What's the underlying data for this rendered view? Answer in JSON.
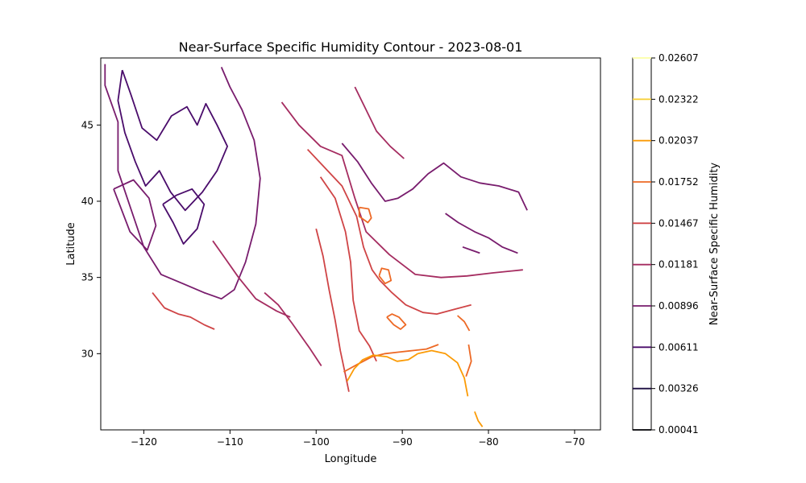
{
  "chart_data": {
    "type": "contour",
    "title": "Near-Surface Specific Humidity Contour - 2023-08-01",
    "xlabel": "Longitude",
    "ylabel": "Latitude",
    "xlim": [
      -125,
      -67
    ],
    "ylim": [
      25,
      49.4
    ],
    "x_ticks": [
      -120,
      -110,
      -100,
      -90,
      -80,
      -70
    ],
    "y_ticks": [
      30,
      35,
      40,
      45
    ],
    "x_tick_labels": [
      "−120",
      "−110",
      "−100",
      "−90",
      "−80",
      "−70"
    ],
    "y_tick_labels": [
      "30",
      "35",
      "40",
      "45"
    ],
    "grid": false,
    "colorbar": {
      "label": "Near-Surface Specific Humidity",
      "position": "right",
      "levels": [
        0.00041,
        0.00326,
        0.00611,
        0.00896,
        0.01181,
        0.01467,
        0.01752,
        0.02037,
        0.02322,
        0.02607
      ],
      "level_labels": [
        "0.00041",
        "0.00326",
        "0.00611",
        "0.00896",
        "0.01181",
        "0.01467",
        "0.01752",
        "0.02037",
        "0.02322",
        "0.02607"
      ],
      "colors": [
        "#000004",
        "#1b0c41",
        "#4a0c6b",
        "#781c6d",
        "#a52c60",
        "#cf4446",
        "#ed6925",
        "#fb9b06",
        "#f7d13d",
        "#fcffa4"
      ]
    },
    "series": [
      {
        "level": 0.00611,
        "lines": [
          [
            [
              -122.5,
              48.6
            ],
            [
              -121.5,
              47.0
            ],
            [
              -120.2,
              44.8
            ],
            [
              -118.5,
              44.0
            ],
            [
              -116.8,
              45.6
            ],
            [
              -115.0,
              46.2
            ],
            [
              -113.8,
              45.0
            ],
            [
              -112.8,
              46.4
            ],
            [
              -111.5,
              45.0
            ],
            [
              -110.3,
              43.6
            ],
            [
              -111.5,
              42.0
            ],
            [
              -113.2,
              40.6
            ],
            [
              -115.2,
              39.4
            ],
            [
              -116.9,
              40.6
            ],
            [
              -118.2,
              42.0
            ],
            [
              -119.8,
              41.0
            ],
            [
              -121.0,
              42.6
            ],
            [
              -122.2,
              44.5
            ],
            [
              -123.0,
              46.6
            ],
            [
              -122.5,
              48.6
            ]
          ],
          [
            [
              -117.8,
              39.8
            ],
            [
              -116.6,
              38.6
            ],
            [
              -115.4,
              37.2
            ],
            [
              -113.8,
              38.2
            ],
            [
              -113.0,
              39.8
            ],
            [
              -114.4,
              40.8
            ],
            [
              -116.2,
              40.4
            ],
            [
              -117.8,
              39.8
            ]
          ]
        ]
      },
      {
        "level": 0.00896,
        "lines": [
          [
            [
              -124.5,
              49.0
            ],
            [
              -124.5,
              47.6
            ],
            [
              -123.0,
              45.2
            ],
            [
              -123.0,
              42.0
            ],
            [
              -121.5,
              39.5
            ],
            [
              -120.0,
              37.0
            ],
            [
              -118.0,
              35.2
            ],
            [
              -115.5,
              34.6
            ],
            [
              -113.0,
              34.0
            ],
            [
              -111.0,
              33.6
            ],
            [
              -109.5,
              34.2
            ],
            [
              -108.2,
              36.0
            ],
            [
              -107.0,
              38.5
            ],
            [
              -106.5,
              41.5
            ],
            [
              -107.2,
              44.0
            ],
            [
              -108.6,
              46.0
            ],
            [
              -110.0,
              47.5
            ],
            [
              -111.0,
              48.8
            ]
          ],
          [
            [
              -123.5,
              40.8
            ],
            [
              -121.6,
              38.0
            ],
            [
              -119.6,
              36.8
            ],
            [
              -118.6,
              38.4
            ],
            [
              -119.4,
              40.2
            ],
            [
              -121.2,
              41.4
            ],
            [
              -123.5,
              40.8
            ]
          ],
          [
            [
              -97.0,
              43.8
            ],
            [
              -95.2,
              42.6
            ],
            [
              -93.6,
              41.2
            ],
            [
              -92.0,
              40.0
            ],
            [
              -90.5,
              40.2
            ],
            [
              -88.8,
              40.8
            ],
            [
              -87.0,
              41.8
            ],
            [
              -85.2,
              42.5
            ],
            [
              -83.2,
              41.6
            ],
            [
              -81.0,
              41.2
            ],
            [
              -78.8,
              41.0
            ],
            [
              -76.5,
              40.6
            ],
            [
              -75.5,
              39.4
            ]
          ],
          [
            [
              -85.0,
              39.2
            ],
            [
              -83.5,
              38.6
            ],
            [
              -81.6,
              38.0
            ],
            [
              -80.0,
              37.6
            ],
            [
              -78.4,
              37.0
            ],
            [
              -76.6,
              36.6
            ]
          ],
          [
            [
              -83.0,
              37.0
            ],
            [
              -82.0,
              36.8
            ],
            [
              -81.0,
              36.6
            ]
          ]
        ]
      },
      {
        "level": 0.01181,
        "lines": [
          [
            [
              -112.0,
              37.4
            ],
            [
              -110.5,
              36.2
            ],
            [
              -109.0,
              35.0
            ],
            [
              -107.0,
              33.6
            ],
            [
              -104.6,
              32.8
            ],
            [
              -103.0,
              32.4
            ]
          ],
          [
            [
              -104.0,
              46.5
            ],
            [
              -102.0,
              45.0
            ],
            [
              -99.5,
              43.6
            ],
            [
              -97.0,
              43.0
            ],
            [
              -95.5,
              40.2
            ],
            [
              -94.2,
              38.0
            ],
            [
              -91.5,
              36.5
            ],
            [
              -88.5,
              35.2
            ],
            [
              -85.5,
              35.0
            ],
            [
              -82.5,
              35.1
            ],
            [
              -79.5,
              35.3
            ],
            [
              -76.0,
              35.5
            ]
          ],
          [
            [
              -95.5,
              47.5
            ],
            [
              -94.2,
              46.0
            ],
            [
              -93.0,
              44.6
            ],
            [
              -91.4,
              43.6
            ],
            [
              -89.8,
              42.8
            ]
          ],
          [
            [
              -106.0,
              34.0
            ],
            [
              -104.4,
              33.2
            ],
            [
              -102.8,
              32.0
            ],
            [
              -100.8,
              30.4
            ],
            [
              -99.4,
              29.2
            ]
          ]
        ]
      },
      {
        "level": 0.01467,
        "lines": [
          [
            [
              -119.0,
              34.0
            ],
            [
              -117.6,
              33.0
            ],
            [
              -116.0,
              32.6
            ],
            [
              -114.6,
              32.4
            ],
            [
              -113.0,
              31.9
            ],
            [
              -111.8,
              31.6
            ]
          ],
          [
            [
              -101.0,
              43.4
            ],
            [
              -99.0,
              42.2
            ],
            [
              -97.0,
              41.0
            ],
            [
              -95.3,
              39.0
            ],
            [
              -94.5,
              37.0
            ],
            [
              -93.5,
              35.5
            ],
            [
              -92.6,
              34.8
            ],
            [
              -91.2,
              34.0
            ],
            [
              -89.6,
              33.2
            ],
            [
              -87.6,
              32.7
            ],
            [
              -86.0,
              32.6
            ],
            [
              -84.0,
              32.9
            ],
            [
              -82.0,
              33.2
            ]
          ],
          [
            [
              -99.5,
              41.6
            ],
            [
              -97.8,
              40.2
            ],
            [
              -96.6,
              38.0
            ],
            [
              -96.0,
              36.0
            ],
            [
              -95.7,
              33.5
            ],
            [
              -95.0,
              31.5
            ],
            [
              -93.8,
              30.5
            ],
            [
              -93.0,
              29.5
            ]
          ],
          [
            [
              -100.0,
              38.2
            ],
            [
              -99.2,
              36.4
            ],
            [
              -98.5,
              34.2
            ],
            [
              -97.8,
              32.2
            ],
            [
              -97.2,
              30.2
            ],
            [
              -96.6,
              28.6
            ],
            [
              -96.2,
              27.5
            ]
          ]
        ]
      },
      {
        "level": 0.01752,
        "lines": [
          [
            [
              -95.0,
              39.6
            ],
            [
              -93.9,
              39.5
            ],
            [
              -93.6,
              38.9
            ],
            [
              -94.0,
              38.6
            ],
            [
              -95.0,
              39.0
            ],
            [
              -95.0,
              39.6
            ]
          ],
          [
            [
              -92.7,
              35.1
            ],
            [
              -92.0,
              34.6
            ],
            [
              -91.3,
              34.8
            ],
            [
              -91.6,
              35.5
            ],
            [
              -92.4,
              35.6
            ],
            [
              -92.7,
              35.1
            ]
          ],
          [
            [
              -91.8,
              32.4
            ],
            [
              -91.0,
              31.9
            ],
            [
              -90.2,
              31.6
            ],
            [
              -89.6,
              31.9
            ],
            [
              -90.4,
              32.4
            ],
            [
              -91.2,
              32.6
            ],
            [
              -91.8,
              32.4
            ]
          ],
          [
            [
              -96.8,
              28.8
            ],
            [
              -95.2,
              29.3
            ],
            [
              -93.5,
              29.8
            ],
            [
              -92.0,
              30.0
            ],
            [
              -90.4,
              30.1
            ],
            [
              -88.8,
              30.2
            ],
            [
              -87.2,
              30.3
            ],
            [
              -85.8,
              30.6
            ]
          ],
          [
            [
              -83.6,
              32.5
            ],
            [
              -82.8,
              32.1
            ],
            [
              -82.2,
              31.5
            ]
          ],
          [
            [
              -82.3,
              30.6
            ],
            [
              -82.0,
              29.5
            ],
            [
              -82.6,
              28.5
            ]
          ]
        ]
      },
      {
        "level": 0.02037,
        "lines": [
          [
            [
              -96.4,
              28.2
            ],
            [
              -95.6,
              29.0
            ],
            [
              -94.6,
              29.6
            ],
            [
              -93.4,
              29.9
            ],
            [
              -91.8,
              29.8
            ],
            [
              -90.6,
              29.5
            ],
            [
              -89.3,
              29.6
            ],
            [
              -88.2,
              30.0
            ]
          ],
          [
            [
              -88.2,
              30.0
            ],
            [
              -86.6,
              30.2
            ],
            [
              -85.0,
              30.0
            ],
            [
              -83.6,
              29.4
            ],
            [
              -82.8,
              28.4
            ],
            [
              -82.4,
              27.2
            ]
          ],
          [
            [
              -81.6,
              26.2
            ],
            [
              -81.2,
              25.6
            ],
            [
              -80.7,
              25.2
            ]
          ]
        ]
      }
    ]
  }
}
